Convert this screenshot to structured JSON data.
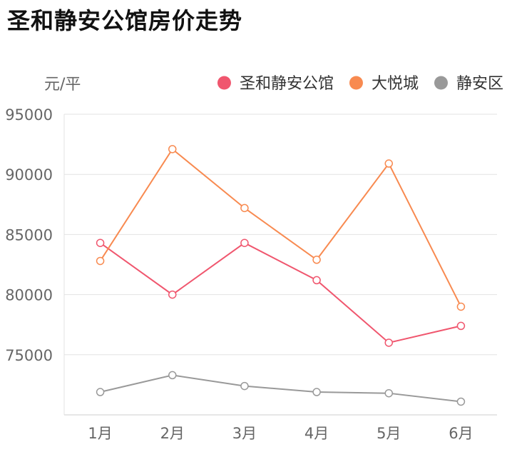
{
  "title": "圣和静安公馆房价走势",
  "chart_data": {
    "type": "line",
    "title": "圣和静安公馆房价走势",
    "xlabel": "",
    "ylabel": "元/平",
    "categories": [
      "1月",
      "2月",
      "3月",
      "4月",
      "5月",
      "6月"
    ],
    "ylim": [
      70000,
      95000
    ],
    "yticks": [
      75000,
      80000,
      85000,
      90000,
      95000
    ],
    "grid": true,
    "legend_position": "top-right",
    "series": [
      {
        "name": "圣和静安公馆",
        "color": "#f0566e",
        "values": [
          84300,
          80000,
          84300,
          81200,
          76000,
          77400
        ]
      },
      {
        "name": "大悦城",
        "color": "#f88a50",
        "values": [
          82800,
          92100,
          87200,
          82900,
          90900,
          79000
        ]
      },
      {
        "name": "静安区",
        "color": "#999999",
        "values": [
          71900,
          73300,
          72400,
          71900,
          71800,
          71100
        ]
      }
    ]
  }
}
